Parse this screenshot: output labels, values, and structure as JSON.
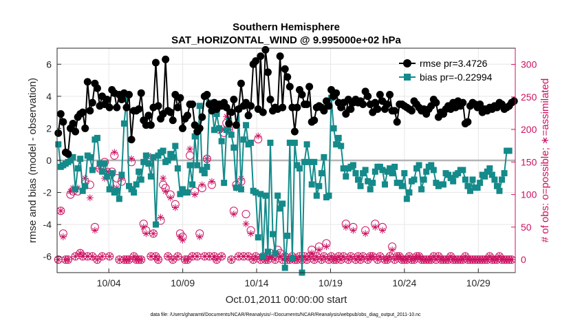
{
  "chart_data": {
    "type": "line",
    "title": "Southern Hemisphere",
    "subtitle": "SAT_HORIZONTAL_WIND @ 9.995000e+02 hPa",
    "xlabel": "Oct.01,2011 00:00:00 start",
    "ylabel_left": "rmse and bias (model - observation)",
    "ylabel_right": "# of obs: o=possible; ∗=assimilated",
    "footer": "data file: /Users/gharamti/Documents/NCAR/Reanalysis/~/Documents/NCAR/Reanalysis/webpub/obs_diag_output_2011-10.nc",
    "x_ticks": [
      {
        "day": 3.5,
        "label": "10/04"
      },
      {
        "day": 8.5,
        "label": "10/09"
      },
      {
        "day": 13.5,
        "label": "10/14"
      },
      {
        "day": 18.5,
        "label": "10/19"
      },
      {
        "day": 23.5,
        "label": "10/24"
      },
      {
        "day": 28.5,
        "label": "10/29"
      }
    ],
    "xlim": [
      0.0,
      31.0
    ],
    "ylim_left": [
      -7,
      7
    ],
    "ylim_right": [
      -20,
      325
    ],
    "y_ticks_left": [
      -6,
      -4,
      -2,
      0,
      2,
      4,
      6
    ],
    "y_ticks_right": [
      0,
      50,
      100,
      150,
      200,
      250,
      300
    ],
    "grid": true,
    "zero_line": 0,
    "colors": {
      "rmse": "#000000",
      "bias": "#148a8a",
      "obs": "#cc1060",
      "zero": "#b4b4b4"
    },
    "legend_position": "top-right",
    "series": [
      {
        "name": "rmse pr=3.4726",
        "axis": "left",
        "marker": "circle",
        "values": [
          1.7,
          2.9,
          2.4,
          0.5,
          0.4,
          2.0,
          2.3,
          1.8,
          2.7,
          2.9,
          3.0,
          2.0,
          4.9,
          3.1,
          3.6,
          4.8,
          4.5,
          3.4,
          4.0,
          3.5,
          3.8,
          3.3,
          4.4,
          4.2,
          3.3,
          4.1,
          3.8,
          4.2,
          3.3,
          4.1,
          1.3,
          3.1,
          3.1,
          3.2,
          4.2,
          2.5,
          2.2,
          2.8,
          2.2,
          3.3,
          6.1,
          3.4,
          2.6,
          2.9,
          6.3,
          3.1,
          3.0,
          2.5,
          4.1,
          3.3,
          3.9,
          2.0,
          2.6,
          2.8,
          3.5,
          3.5,
          2.2,
          1.8,
          2.0,
          2.7,
          4.0,
          4.1,
          3.5,
          3.1,
          3.6,
          3.2,
          3.5,
          3.4,
          3.6,
          3.3,
          2.3,
          3.0,
          3.8,
          2.2,
          3.2,
          4.8,
          3.4,
          3.6,
          2.8,
          3.4,
          6.0,
          6.2,
          3.2,
          6.5,
          3.0,
          6.9,
          5.5,
          3.8,
          3.1,
          3.3,
          3.2,
          6.5,
          3.3,
          5.7,
          5.2,
          4.6,
          3.3,
          1.8,
          3.3,
          4.4,
          4.1,
          3.5,
          3.5,
          4.6,
          2.4,
          2.5,
          3.3,
          3.4,
          3.3,
          3.1,
          3.7,
          3.4,
          4.4,
          4.0,
          4.2,
          3.6,
          3.3,
          3.6,
          2.9,
          3.8,
          3.2,
          3.6,
          3.8,
          3.6,
          3.7,
          3.5,
          4.3,
          4.0,
          3.5,
          3.0,
          3.6,
          3.2,
          4.1,
          3.7,
          3.2,
          3.5,
          4.1,
          3.1,
          3.1,
          2.4,
          3.5,
          3.5,
          3.4,
          3.3,
          3.2,
          3.1,
          3.7,
          3.5,
          3.3,
          3.1,
          3.2,
          2.9,
          3.2,
          3.4,
          3.8,
          3.6,
          2.7,
          3.0,
          2.9,
          3.2,
          3.4,
          3.2,
          3.6,
          3.3,
          3.7,
          3.4,
          3.6,
          2.3,
          2.4,
          3.4,
          3.6,
          3.5,
          3.3,
          3.5,
          3.0,
          3.2,
          3.1,
          3.3,
          3.2,
          3.4,
          3.3,
          3.6,
          3.5,
          3.2,
          3.3,
          3.4,
          3.6,
          3.7
        ]
      },
      {
        "name": "bias pr=-0.22994",
        "axis": "left",
        "marker": "square",
        "values": [
          1.0,
          -0.4,
          -0.3,
          -0.2,
          -0.1,
          0.0,
          0.2,
          -1.8,
          -0.5,
          0.1,
          -1.9,
          -1.6,
          0.3,
          0.2,
          -0.6,
          1.3,
          1.4,
          -0.2,
          -0.7,
          -0.2,
          -1.0,
          -1.8,
          -0.8,
          -2.0,
          -1.9,
          -2.4,
          -0.9,
          2.3,
          3.9,
          -1.6,
          -1.8,
          -2.0,
          -1.5,
          -0.7,
          -1.2,
          -0.1,
          0.3,
          -0.2,
          -1.0,
          0.2,
          -4.0,
          0.3,
          0.5,
          0.6,
          -0.1,
          0.0,
          0.4,
          0.2,
          0.9,
          -0.5,
          -2.1,
          -1.8,
          -2.0,
          -2.0,
          -0.3,
          -1.5,
          1.5,
          -0.3,
          3.4,
          -0.6,
          -0.8,
          -0.4,
          3.6,
          3.3,
          1.9,
          2.9,
          2.0,
          1.2,
          -1.4,
          1.9,
          2.5,
          1.6,
          0.8,
          -1.7,
          3.2,
          -1.8,
          1.3,
          2.2,
          1.0,
          1.1,
          -1.9,
          -2.0,
          -4.8,
          -2.1,
          -6.0,
          -2.2,
          -5.7,
          1.1,
          -4.6,
          -5.8,
          -2.2,
          -3.0,
          -2.7,
          -6.7,
          -4.7,
          1.1,
          -6.1,
          1.1,
          -0.3,
          -0.5,
          -7.0,
          -0.1,
          1.0,
          -0.1,
          -1.5,
          -0.1,
          -2.2,
          -1.6,
          -0.8,
          0.2,
          -2.3,
          -2.2,
          3.9,
          2.0,
          1.0,
          1.4,
          0.9,
          -0.5,
          -1.0,
          -0.5,
          -0.4,
          -0.3,
          -0.8,
          -1.2,
          -1.6,
          -0.8,
          -0.6,
          -1.3,
          -1.8,
          -1.4,
          -0.7,
          -0.4,
          -0.4,
          -0.6,
          -1.5,
          -0.7,
          -0.5,
          -0.8,
          -0.4,
          -1.4,
          -1.4,
          -1.6,
          -0.8,
          -2.4,
          -2.0,
          -1.3,
          -1.2,
          -0.5,
          -0.3,
          -1.8,
          -1.2,
          -0.7,
          -0.4,
          -0.3,
          -0.6,
          -1.4,
          -1.6,
          -1.5,
          -1.5,
          -0.8,
          -0.9,
          -1.1,
          -1.3,
          -0.9,
          -0.8,
          -0.6,
          -0.6,
          -1.2,
          -1.6,
          -1.9,
          -1.2,
          -1.7,
          -1.7,
          -1.4,
          -0.9,
          -1.0,
          -0.7,
          -0.5,
          -0.9,
          -1.2,
          -1.6,
          -1.9,
          -1.2,
          -0.8,
          0.6,
          0.6
        ]
      },
      {
        "name": "obs possible",
        "axis": "right",
        "marker": "circle-open",
        "values": [
          0,
          75,
          40,
          0,
          0,
          100,
          105,
          5,
          105,
          10,
          5,
          120,
          5,
          115,
          5,
          50,
          0,
          140,
          5,
          150,
          135,
          5,
          135,
          160,
          125,
          0,
          120,
          0,
          0,
          0,
          150,
          5,
          0,
          0,
          0,
          55,
          45,
          150,
          5,
          40,
          5,
          0,
          60,
          115,
          110,
          5,
          100,
          0,
          85,
          5,
          40,
          35,
          0,
          0,
          160,
          5,
          105,
          5,
          40,
          110,
          5,
          155,
          5,
          115,
          5,
          0,
          200,
          5,
          195,
          210,
          200,
          0,
          75,
          115,
          5,
          120,
          5,
          70,
          5,
          45,
          0,
          5,
          185,
          0,
          5,
          0,
          0,
          10,
          5,
          0,
          15,
          10,
          0,
          5,
          0,
          0,
          5,
          0,
          0,
          5,
          0,
          5,
          0,
          5,
          15,
          0,
          5,
          20,
          0,
          5,
          25,
          0,
          5,
          0,
          0,
          5,
          0,
          5,
          55,
          0,
          5,
          50,
          0,
          5,
          0,
          5,
          45,
          0,
          5,
          5,
          55,
          0,
          5,
          50,
          0,
          0,
          5,
          20,
          0,
          5,
          5,
          0,
          0,
          0,
          5,
          0,
          0,
          5,
          5,
          0,
          0,
          0,
          0,
          0,
          5,
          0,
          5,
          0,
          0,
          0,
          0,
          5,
          0,
          0,
          0,
          0,
          0,
          5,
          0,
          0,
          0,
          0,
          0,
          0,
          0,
          0,
          0,
          5,
          0,
          0,
          0,
          5,
          0,
          0,
          0,
          0,
          0
        ]
      },
      {
        "name": "obs assimilated",
        "axis": "right",
        "marker": "asterisk",
        "values": [
          0,
          75,
          35,
          0,
          0,
          105,
          110,
          5,
          110,
          10,
          5,
          125,
          5,
          95,
          5,
          45,
          0,
          140,
          5,
          125,
          135,
          5,
          110,
          165,
          110,
          0,
          125,
          0,
          0,
          0,
          155,
          5,
          0,
          0,
          0,
          50,
          40,
          160,
          5,
          40,
          5,
          0,
          65,
          125,
          105,
          5,
          95,
          0,
          80,
          5,
          35,
          30,
          0,
          0,
          170,
          5,
          100,
          5,
          35,
          115,
          5,
          155,
          5,
          120,
          5,
          0,
          200,
          5,
          200,
          220,
          200,
          0,
          70,
          110,
          5,
          125,
          5,
          55,
          5,
          40,
          0,
          5,
          190,
          0,
          5,
          0,
          0,
          5,
          5,
          0,
          10,
          5,
          0,
          5,
          0,
          0,
          5,
          0,
          0,
          5,
          0,
          5,
          0,
          5,
          10,
          0,
          5,
          15,
          0,
          5,
          20,
          0,
          5,
          0,
          0,
          5,
          0,
          5,
          50,
          0,
          5,
          45,
          0,
          5,
          0,
          5,
          40,
          0,
          5,
          5,
          50,
          0,
          5,
          45,
          0,
          0,
          5,
          15,
          0,
          5,
          5,
          0,
          0,
          0,
          5,
          0,
          0,
          5,
          5,
          0,
          0,
          0,
          0,
          0,
          5,
          0,
          5,
          0,
          0,
          0,
          0,
          5,
          0,
          0,
          0,
          0,
          0,
          5,
          0,
          0,
          0,
          0,
          0,
          0,
          0,
          0,
          0,
          5,
          0,
          0,
          0,
          5,
          0,
          0,
          0,
          0,
          0
        ]
      }
    ]
  }
}
